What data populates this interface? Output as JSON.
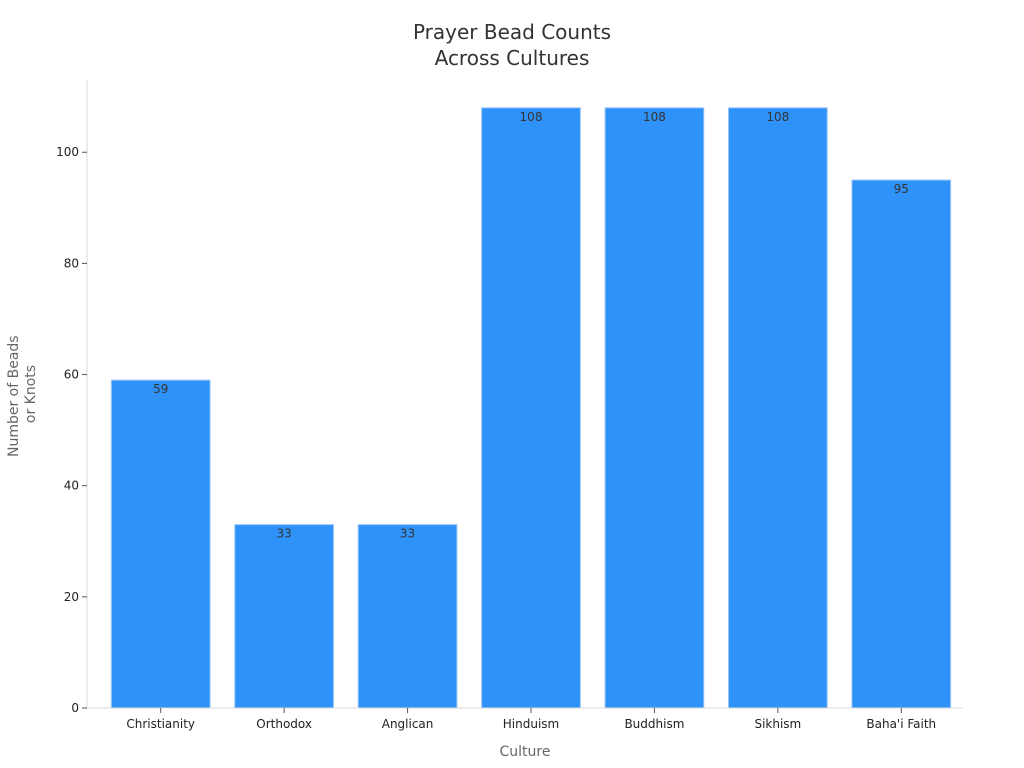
{
  "chart_data": {
    "type": "bar",
    "title": "Prayer Bead Counts Across Cultures",
    "title_lines": [
      "Prayer Bead Counts",
      "Across Cultures"
    ],
    "xlabel": "Culture",
    "ylabel_lines": [
      "Number of Beads",
      "or Knots"
    ],
    "categories": [
      "Christianity",
      "Orthodox",
      "Anglican",
      "Hinduism",
      "Buddhism",
      "Sikhism",
      "Baha'i Faith"
    ],
    "values": [
      59,
      33,
      33,
      108,
      108,
      108,
      95
    ],
    "ylim": [
      0,
      113
    ],
    "yticks": [
      0,
      20,
      40,
      60,
      80,
      100
    ],
    "grid": false,
    "bar_color": "#2F92F8",
    "bar_edge_color": "#9EC8F5",
    "show_data_labels": true
  }
}
